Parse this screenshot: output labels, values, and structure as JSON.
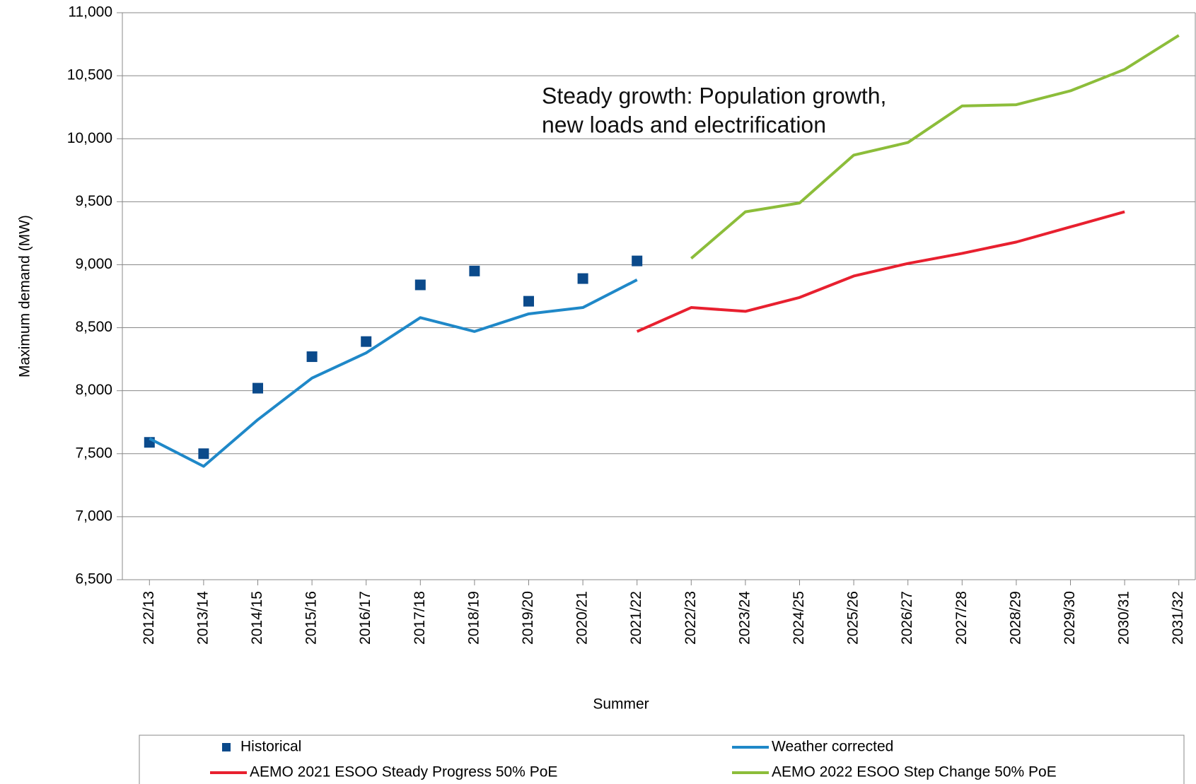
{
  "chart_data": {
    "type": "line",
    "annotation": [
      "Steady growth: Population growth,",
      "new loads and electrification"
    ],
    "x_label": "Summer",
    "y_label": "Maximum demand (MW)",
    "categories": [
      "2012/13",
      "2013/14",
      "2014/15",
      "2015/16",
      "2016/17",
      "2017/18",
      "2018/19",
      "2019/20",
      "2020/21",
      "2021/22",
      "2022/23",
      "2023/24",
      "2024/25",
      "2025/26",
      "2026/27",
      "2027/28",
      "2028/29",
      "2029/30",
      "2030/31",
      "2031/32"
    ],
    "series": [
      {
        "name": "Historical",
        "color": "#0b4a8b",
        "style": "markers",
        "values": [
          7590,
          7500,
          8020,
          8270,
          8390,
          8840,
          8950,
          8710,
          8890,
          9030,
          null,
          null,
          null,
          null,
          null,
          null,
          null,
          null,
          null,
          null
        ]
      },
      {
        "name": "Weather corrected",
        "color": "#1f88c8",
        "style": "line",
        "values": [
          7620,
          7400,
          7770,
          8100,
          8300,
          8580,
          8470,
          8610,
          8660,
          8880,
          null,
          null,
          null,
          null,
          null,
          null,
          null,
          null,
          null,
          null
        ]
      },
      {
        "name": "AEMO 2021 ESOO Steady Progress 50% PoE",
        "color": "#e8202f",
        "style": "line",
        "values": [
          null,
          null,
          null,
          null,
          null,
          null,
          null,
          null,
          null,
          8470,
          8660,
          8630,
          8740,
          8910,
          9010,
          9090,
          9180,
          9300,
          9420,
          null
        ]
      },
      {
        "name": "AEMO 2022 ESOO Step Change 50% PoE",
        "color": "#8cbd3a",
        "style": "line",
        "values": [
          null,
          null,
          null,
          null,
          null,
          null,
          null,
          null,
          null,
          null,
          9050,
          9420,
          9490,
          9870,
          9970,
          10260,
          10270,
          10380,
          10550,
          10820
        ]
      }
    ],
    "ylim": [
      6500,
      11000
    ],
    "yticks": [
      {
        "value": 6500,
        "label": "6,500"
      },
      {
        "value": 7000,
        "label": "7,000"
      },
      {
        "value": 7500,
        "label": "7,500"
      },
      {
        "value": 8000,
        "label": "8,000"
      },
      {
        "value": 8500,
        "label": "8,500"
      },
      {
        "value": 9000,
        "label": "9,000"
      },
      {
        "value": 9500,
        "label": "9,500"
      },
      {
        "value": 10000,
        "label": "10,000"
      },
      {
        "value": 10500,
        "label": "10,500"
      },
      {
        "value": 11000,
        "label": "11,000"
      }
    ],
    "grid": true
  }
}
